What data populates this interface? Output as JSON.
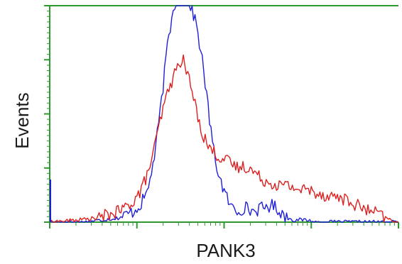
{
  "chart_data": {
    "type": "line",
    "title": "",
    "xlabel": "PANK3",
    "ylabel": "Events",
    "x_scale": "log",
    "grid": false,
    "legend": "none",
    "xlim": [
      0,
      1
    ],
    "ylim": [
      0,
      1
    ],
    "colors": {
      "frame": "#2e9a2e",
      "ticks": "#2e9a2e"
    },
    "series": [
      {
        "color": "#1f1fd8",
        "x": [
          0.0,
          0.1,
          0.2,
          0.24,
          0.26,
          0.28,
          0.3,
          0.32,
          0.34,
          0.36,
          0.38,
          0.4,
          0.42,
          0.44,
          0.46,
          0.47,
          0.48,
          0.5,
          0.52,
          0.54,
          0.56,
          0.58,
          0.6,
          0.62,
          0.64,
          0.66,
          0.68,
          0.7,
          0.72,
          0.74,
          0.76,
          0.78,
          0.8,
          0.82,
          0.84,
          0.86,
          0.88,
          0.9,
          0.94,
          0.98,
          1.0
        ],
        "y": [
          0.0,
          0.0,
          0.02,
          0.05,
          0.08,
          0.14,
          0.3,
          0.55,
          0.85,
          1.02,
          1.04,
          1.02,
          0.92,
          0.72,
          0.45,
          0.33,
          0.25,
          0.14,
          0.07,
          0.05,
          0.07,
          0.05,
          0.06,
          0.07,
          0.08,
          0.05,
          0.02,
          0.01,
          0.01,
          0.01,
          0.0,
          0.0,
          0.0,
          0.0,
          0.0,
          0.0,
          0.0,
          0.0,
          0.0,
          0.0,
          0.0
        ]
      },
      {
        "color": "#dd1f1f",
        "x": [
          0.0,
          0.08,
          0.14,
          0.2,
          0.22,
          0.24,
          0.26,
          0.28,
          0.3,
          0.32,
          0.34,
          0.36,
          0.37,
          0.38,
          0.4,
          0.42,
          0.44,
          0.46,
          0.48,
          0.5,
          0.52,
          0.54,
          0.56,
          0.58,
          0.6,
          0.62,
          0.64,
          0.66,
          0.68,
          0.7,
          0.72,
          0.74,
          0.76,
          0.78,
          0.8,
          0.82,
          0.84,
          0.86,
          0.88,
          0.9,
          0.92,
          0.94,
          0.96,
          0.98,
          1.0
        ],
        "y": [
          0.0,
          0.01,
          0.02,
          0.05,
          0.07,
          0.1,
          0.14,
          0.22,
          0.34,
          0.49,
          0.61,
          0.69,
          0.73,
          0.76,
          0.66,
          0.52,
          0.4,
          0.34,
          0.31,
          0.29,
          0.27,
          0.25,
          0.26,
          0.24,
          0.21,
          0.19,
          0.18,
          0.17,
          0.17,
          0.16,
          0.15,
          0.15,
          0.14,
          0.13,
          0.12,
          0.12,
          0.11,
          0.09,
          0.08,
          0.06,
          0.05,
          0.04,
          0.02,
          0.01,
          0.0
        ]
      }
    ]
  }
}
